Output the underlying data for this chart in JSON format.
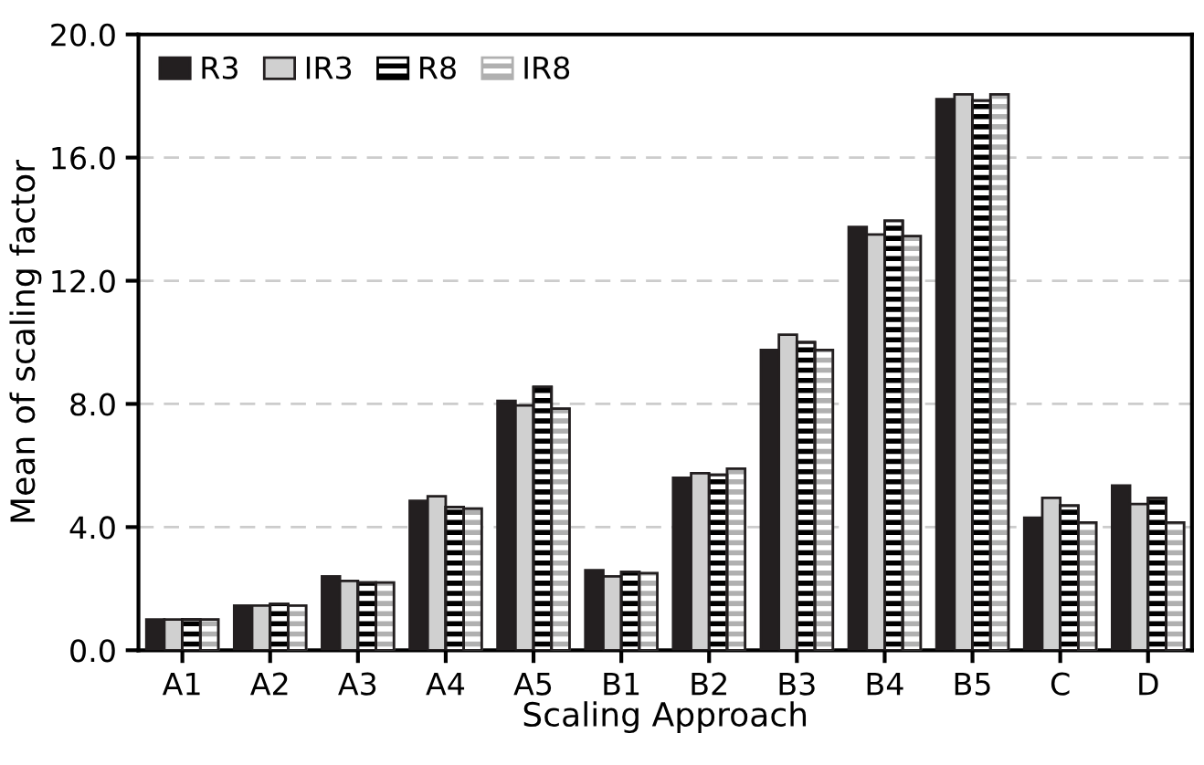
{
  "chart_data": {
    "type": "bar",
    "xlabel": "Scaling Approach",
    "ylabel": "Mean of scaling factor",
    "categories": [
      "A1",
      "A2",
      "A3",
      "A4",
      "A5",
      "B1",
      "B2",
      "B3",
      "B4",
      "B5",
      "C",
      "D"
    ],
    "series": [
      {
        "name": "R3",
        "color": "#231f20",
        "values": [
          1.0,
          1.45,
          2.4,
          4.85,
          8.1,
          2.6,
          5.6,
          9.75,
          13.75,
          17.9,
          4.3,
          5.35
        ]
      },
      {
        "name": "IR3",
        "color": "#d0d0d0",
        "values": [
          1.0,
          1.45,
          2.25,
          5.0,
          7.95,
          2.4,
          5.75,
          10.25,
          13.5,
          18.05,
          4.95,
          4.75
        ]
      },
      {
        "name": "R8",
        "color": "#000000",
        "values": [
          1.0,
          1.5,
          2.2,
          4.65,
          8.55,
          2.55,
          5.7,
          10.0,
          13.95,
          17.85,
          4.7,
          4.95
        ]
      },
      {
        "name": "IR8",
        "color": "#b0b0b0",
        "values": [
          1.0,
          1.45,
          2.2,
          4.6,
          7.85,
          2.5,
          5.9,
          9.75,
          13.45,
          18.05,
          4.15,
          4.15
        ]
      }
    ],
    "ylim": [
      0,
      20
    ],
    "yticks": [
      {
        "value": 0,
        "label": "0.0"
      },
      {
        "value": 4,
        "label": "4.0"
      },
      {
        "value": 8,
        "label": "8.0"
      },
      {
        "value": 12,
        "label": "12.0"
      },
      {
        "value": 16,
        "label": "16.0"
      },
      {
        "value": 20,
        "label": "20.0"
      }
    ],
    "grid": "y",
    "legend": "top left"
  }
}
